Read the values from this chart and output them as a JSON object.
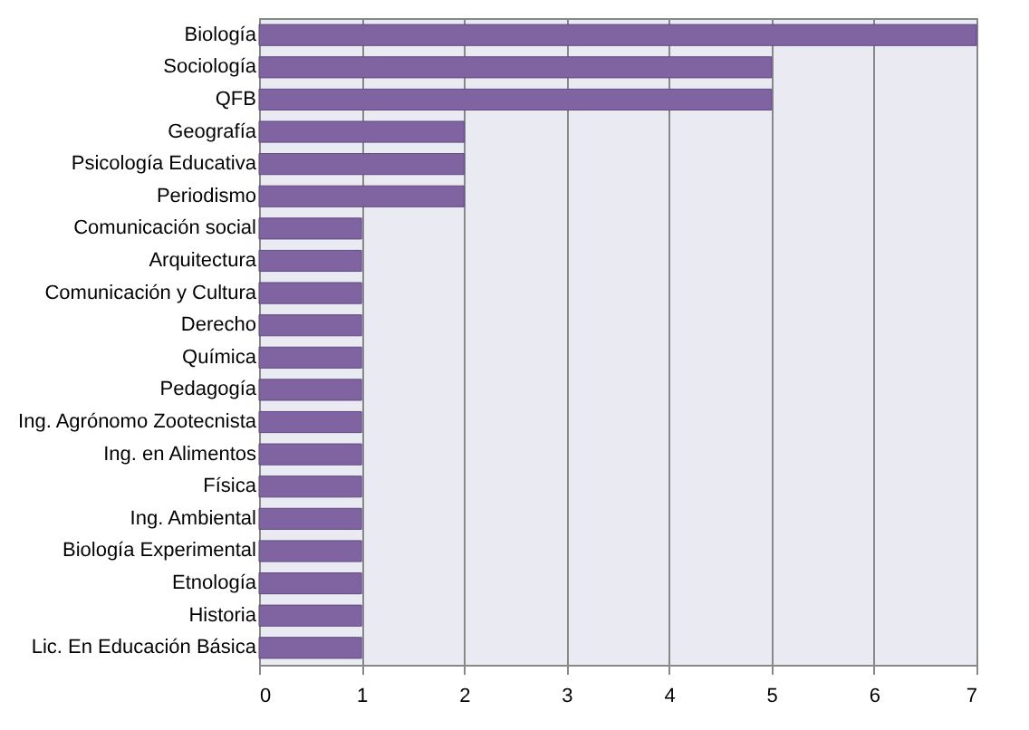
{
  "chart_data": {
    "type": "bar",
    "orientation": "horizontal",
    "categories": [
      "Biología",
      "Sociología",
      "QFB",
      "Geografía",
      "Psicología Educativa",
      "Periodismo",
      "Comunicación social",
      "Arquitectura",
      "Comunicación y Cultura",
      "Derecho",
      "Química",
      "Pedagogía",
      "Ing. Agrónomo Zootecnista",
      "Ing. en Alimentos",
      "Física",
      "Ing. Ambiental",
      "Biología Experimental",
      "Etnología",
      "Historia",
      "Lic. En Educación Básica"
    ],
    "values": [
      7,
      5,
      5,
      2,
      2,
      2,
      1,
      1,
      1,
      1,
      1,
      1,
      1,
      1,
      1,
      1,
      1,
      1,
      1,
      1
    ],
    "color": "#8064a2",
    "xlim": [
      0,
      7
    ],
    "xticks": [
      0,
      1,
      2,
      3,
      4,
      5,
      6,
      7
    ],
    "grid": "x"
  }
}
